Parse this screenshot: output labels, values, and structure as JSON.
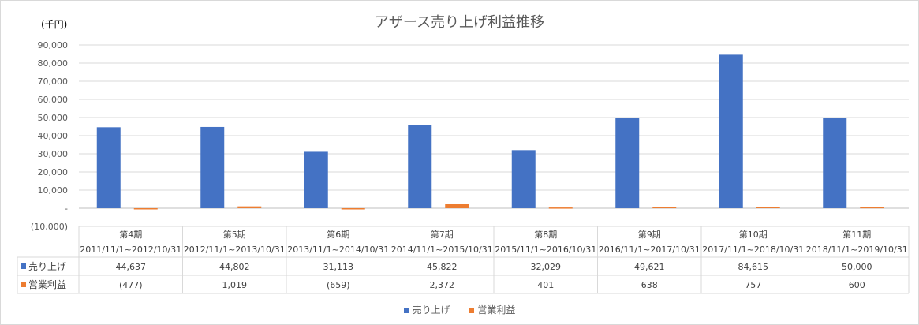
{
  "chart_data": {
    "type": "bar",
    "title": "アザース売り上げ利益推移",
    "unit": "(千円)",
    "categories": [
      "第4期",
      "第5期",
      "第6期",
      "第7期",
      "第8期",
      "第9期",
      "第10期",
      "第11期"
    ],
    "periods": [
      "2011/11/1~2012/10/31",
      "2012/11/1~2013/10/31",
      "2013/11/1~2014/10/31",
      "2014/11/1~2015/10/31",
      "2015/11/1~2016/10/31",
      "2016/11/1~2017/10/31",
      "2017/11/1~2018/10/31",
      "2018/11/1~2019/10/31"
    ],
    "series": [
      {
        "name": "売り上げ",
        "color": "#4472c4",
        "values": [
          44637,
          44802,
          31113,
          45822,
          32029,
          49621,
          84615,
          50000
        ],
        "labels": [
          "44,637",
          "44,802",
          "31,113",
          "45,822",
          "32,029",
          "49,621",
          "84,615",
          "50,000"
        ]
      },
      {
        "name": "営業利益",
        "color": "#ed7d31",
        "values": [
          -477,
          1019,
          -659,
          2372,
          401,
          638,
          757,
          600
        ],
        "labels": [
          "(477)",
          "1,019",
          "(659)",
          "2,372",
          "401",
          "638",
          "757",
          "600"
        ]
      }
    ],
    "ylim": [
      -10000,
      90000
    ],
    "yticks": [
      -10000,
      0,
      10000,
      20000,
      30000,
      40000,
      50000,
      60000,
      70000,
      80000,
      90000
    ],
    "ytick_labels": [
      "(10,000)",
      "-",
      "10,000",
      "20,000",
      "30,000",
      "40,000",
      "50,000",
      "60,000",
      "70,000",
      "80,000",
      "90,000"
    ],
    "grid": true,
    "legend": "bottom",
    "data_table": true
  }
}
